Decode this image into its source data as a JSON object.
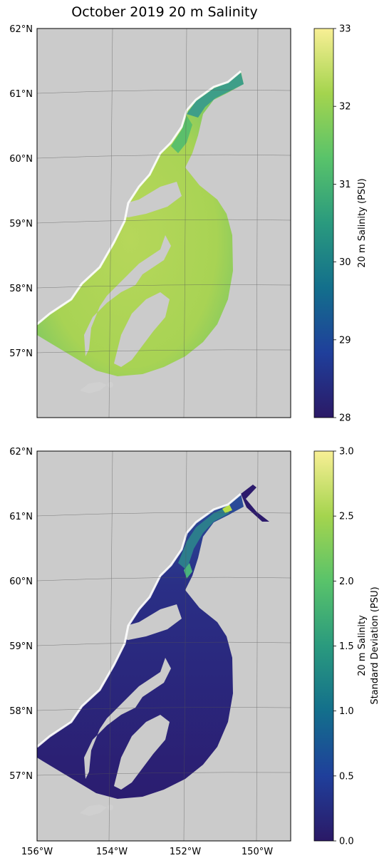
{
  "title": "October 2019 20 m Salinity",
  "colors": {
    "land": "#cbcbcb",
    "viridis_stops": [
      "#2b1966",
      "#1f3f9b",
      "#136f8c",
      "#2a9a7e",
      "#59c36a",
      "#a4d44e",
      "#f8ef95"
    ]
  },
  "map": {
    "lat_labels": [
      "62°N",
      "61°N",
      "60°N",
      "59°N",
      "58°N",
      "57°N"
    ],
    "lon_labels": [
      "156°W",
      "154°W",
      "152°W",
      "150°W"
    ]
  },
  "panels": [
    {
      "id": "salinity",
      "colorbar_label": "20 m Salinity (PSU)",
      "colorbar_label_line2": "",
      "colorbar_ticks": [
        "33",
        "32",
        "31",
        "30",
        "29",
        "28"
      ],
      "vmin": 28,
      "vmax": 33
    },
    {
      "id": "stddev",
      "colorbar_label": "20 m Salinity",
      "colorbar_label_line2": "Standard Deviation (PSU)",
      "colorbar_ticks": [
        "3.0",
        "2.5",
        "2.0",
        "1.5",
        "1.0",
        "0.5",
        "0.0"
      ],
      "vmin": 0,
      "vmax": 3
    }
  ]
}
